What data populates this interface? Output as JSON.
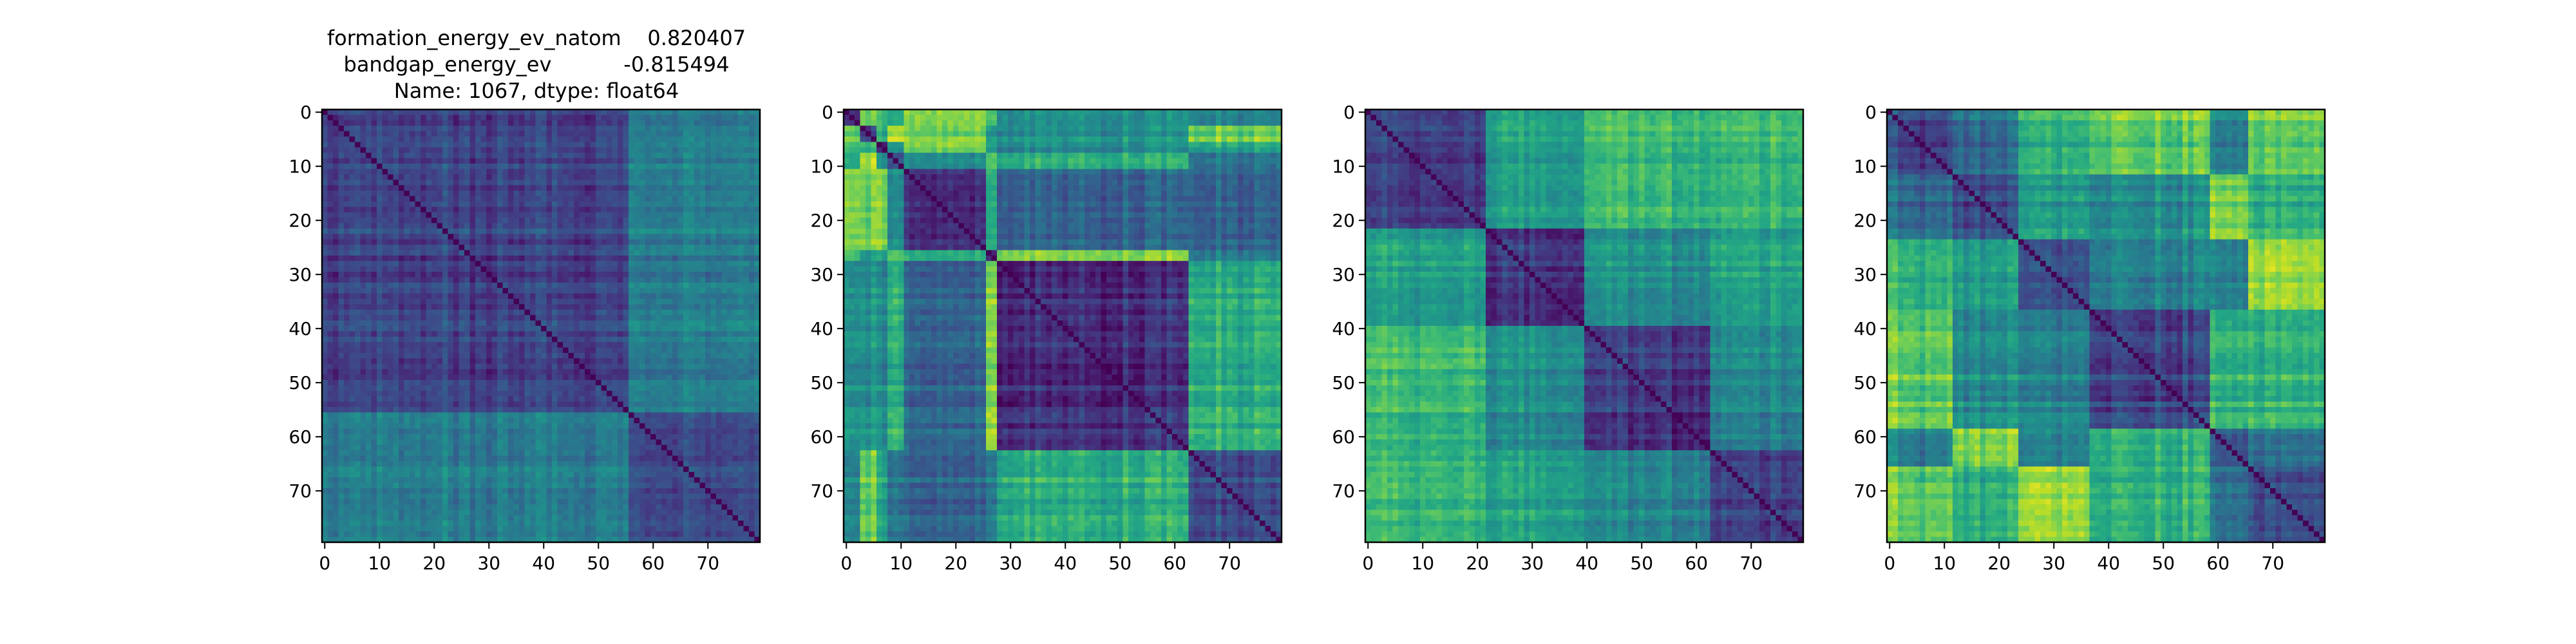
{
  "chart_data": {
    "type": "heatmap",
    "title_lines": [
      "formation_energy_ev_natom    0.820407",
      "bandgap_energy_ev           -0.815494",
      "Name: 1067, dtype: float64"
    ],
    "colormap": "viridis",
    "grid": false,
    "panels": [
      {
        "size": 80,
        "group_boundaries": [
          56
        ],
        "xticks": [
          0,
          10,
          20,
          30,
          40,
          50,
          60,
          70
        ],
        "yticks": [
          0,
          10,
          20,
          30,
          40,
          50,
          60,
          70
        ]
      },
      {
        "size": 80,
        "group_boundaries": [
          3,
          6,
          8,
          11,
          26,
          28,
          63
        ],
        "xticks": [
          0,
          10,
          20,
          30,
          40,
          50,
          60,
          70
        ],
        "yticks": [
          0,
          10,
          20,
          30,
          40,
          50,
          60,
          70
        ]
      },
      {
        "size": 80,
        "group_boundaries": [
          22,
          40,
          63
        ],
        "xticks": [
          0,
          10,
          20,
          30,
          40,
          50,
          60,
          70
        ],
        "yticks": [
          0,
          10,
          20,
          30,
          40,
          50,
          60,
          70
        ]
      },
      {
        "size": 80,
        "group_boundaries": [
          12,
          24,
          37,
          59,
          66
        ],
        "xticks": [
          0,
          10,
          20,
          30,
          40,
          50,
          60,
          70
        ],
        "yticks": [
          0,
          10,
          20,
          30,
          40,
          50,
          60,
          70
        ]
      }
    ]
  }
}
